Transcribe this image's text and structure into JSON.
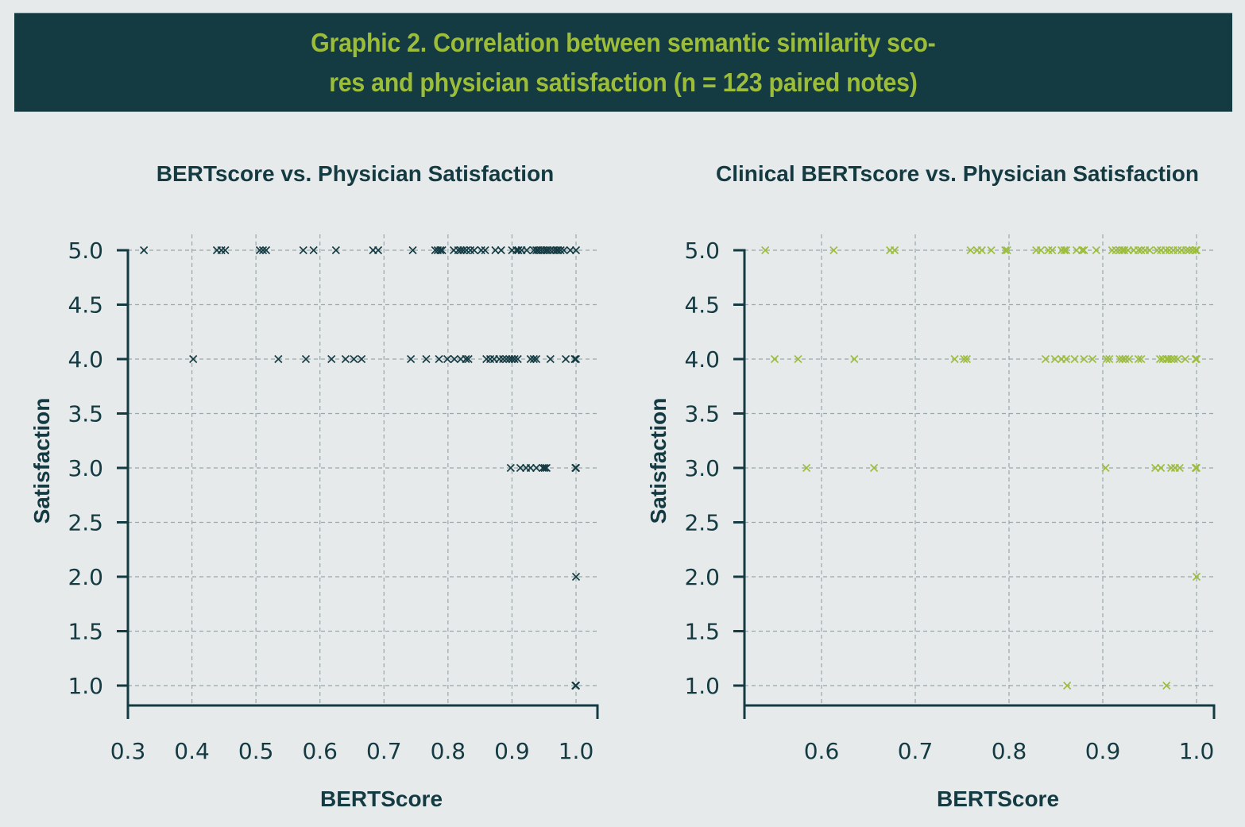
{
  "header": {
    "title_line1": "Graphic 2. Correlation between semantic similarity sco-",
    "title_line2": "res and physician satisfaction (n = 123 paired notes)"
  },
  "colors": {
    "banner_bg": "#143a42",
    "banner_text": "#9cbd3a",
    "series_left": "#143a42",
    "series_right": "#9cbd3a",
    "grid": "#9aa8ab",
    "background": "#e6eaeb"
  },
  "chart_data": [
    {
      "type": "scatter",
      "title": "BERTscore vs. Physician Satisfaction",
      "xlabel": "BERTScore",
      "ylabel": "Satisfaction",
      "xlim": [
        0.3,
        1.03
      ],
      "ylim": [
        0.8,
        5.0
      ],
      "xticks": [
        "0.3",
        "0.4",
        "0.5",
        "0.6",
        "0.7",
        "0.8",
        "0.9",
        "1.0"
      ],
      "xtick_values": [
        0.3,
        0.4,
        0.5,
        0.6,
        0.7,
        0.8,
        0.9,
        1.0
      ],
      "yticks": [
        "1.0",
        "1.5",
        "2.0",
        "2.5",
        "3.0",
        "3.5",
        "4.0",
        "4.5",
        "5.0"
      ],
      "ytick_values": [
        1.0,
        1.5,
        2.0,
        2.5,
        3.0,
        3.5,
        4.0,
        4.5,
        5.0
      ],
      "grid": true,
      "marker": "x",
      "series": [
        {
          "name": "satisfaction_5",
          "y": 5,
          "x": [
            0.325,
            0.439,
            0.446,
            0.452,
            0.506,
            0.511,
            0.516,
            0.574,
            0.59,
            0.625,
            0.683,
            0.691,
            0.745,
            0.78,
            0.784,
            0.788,
            0.791,
            0.809,
            0.816,
            0.82,
            0.824,
            0.829,
            0.835,
            0.841,
            0.852,
            0.858,
            0.874,
            0.883,
            0.9,
            0.907,
            0.91,
            0.915,
            0.923,
            0.934,
            0.938,
            0.941,
            0.945,
            0.949,
            0.953,
            0.956,
            0.96,
            0.965,
            0.969,
            0.972,
            0.976,
            0.981,
            0.991,
            1.0
          ]
        },
        {
          "name": "satisfaction_4",
          "y": 4,
          "x": [
            0.402,
            0.535,
            0.578,
            0.618,
            0.64,
            0.653,
            0.665,
            0.742,
            0.766,
            0.786,
            0.799,
            0.81,
            0.82,
            0.828,
            0.832,
            0.86,
            0.866,
            0.872,
            0.88,
            0.886,
            0.891,
            0.896,
            0.9,
            0.904,
            0.909,
            0.929,
            0.934,
            0.938,
            0.96,
            0.984,
            0.998,
            1.0
          ]
        },
        {
          "name": "satisfaction_3",
          "y": 3,
          "x": [
            0.898,
            0.913,
            0.922,
            0.929,
            0.938,
            0.948,
            0.951,
            0.954,
            0.999,
            1.0
          ]
        },
        {
          "name": "satisfaction_2",
          "y": 2,
          "x": [
            1.0
          ]
        },
        {
          "name": "satisfaction_1",
          "y": 1,
          "x": [
            0.999,
            1.0
          ]
        }
      ]
    },
    {
      "type": "scatter",
      "title": "Clinical BERTscore vs. Physician Satisfaction",
      "xlabel": "BERTScore",
      "ylabel": "Satisfaction",
      "xlim": [
        0.518,
        1.018
      ],
      "ylim": [
        0.8,
        5.0
      ],
      "xticks": [
        "0.6",
        "0.7",
        "0.8",
        "0.9",
        "1.0"
      ],
      "xtick_values": [
        0.6,
        0.7,
        0.8,
        0.9,
        1.0
      ],
      "yticks": [
        "1.0",
        "1.5",
        "2.0",
        "2.5",
        "3.0",
        "3.5",
        "4.0",
        "4.5",
        "5.0"
      ],
      "ytick_values": [
        1.0,
        1.5,
        2.0,
        2.5,
        3.0,
        3.5,
        4.0,
        4.5,
        5.0
      ],
      "grid": true,
      "marker": "x",
      "series": [
        {
          "name": "satisfaction_5",
          "y": 5,
          "x": [
            0.54,
            0.613,
            0.673,
            0.678,
            0.759,
            0.766,
            0.771,
            0.781,
            0.796,
            0.798,
            0.829,
            0.834,
            0.842,
            0.846,
            0.856,
            0.859,
            0.861,
            0.872,
            0.878,
            0.88,
            0.893,
            0.91,
            0.914,
            0.918,
            0.921,
            0.923,
            0.927,
            0.933,
            0.938,
            0.941,
            0.945,
            0.95,
            0.958,
            0.962,
            0.967,
            0.971,
            0.975,
            0.98,
            0.984,
            0.989,
            0.992,
            0.996,
            0.999,
            1.0
          ]
        },
        {
          "name": "satisfaction_4",
          "y": 4,
          "x": [
            0.55,
            0.575,
            0.635,
            0.742,
            0.752,
            0.755,
            0.839,
            0.849,
            0.856,
            0.861,
            0.87,
            0.88,
            0.889,
            0.904,
            0.907,
            0.918,
            0.921,
            0.924,
            0.928,
            0.938,
            0.941,
            0.961,
            0.964,
            0.968,
            0.97,
            0.973,
            0.976,
            0.98,
            0.988,
            0.999,
            1.0
          ]
        },
        {
          "name": "satisfaction_3",
          "y": 3,
          "x": [
            0.584,
            0.656,
            0.903,
            0.956,
            0.962,
            0.973,
            0.977,
            0.982,
            0.999,
            1.0
          ]
        },
        {
          "name": "satisfaction_2",
          "y": 2,
          "x": [
            1.0
          ]
        },
        {
          "name": "satisfaction_1",
          "y": 1,
          "x": [
            0.862,
            0.968
          ]
        }
      ]
    }
  ]
}
